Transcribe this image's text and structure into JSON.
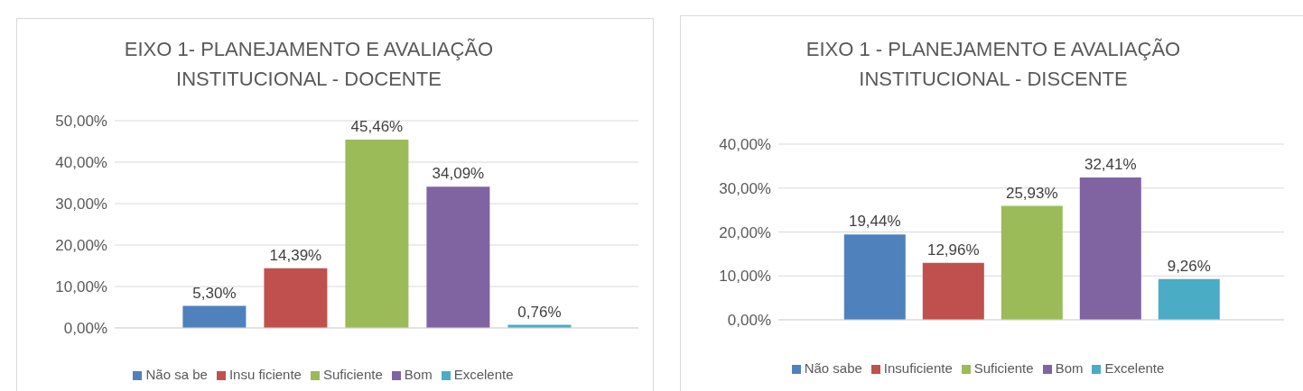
{
  "chart_data": [
    {
      "type": "bar",
      "title": "EIXO 1- PLANEJAMENTO E AVALIAÇÃO INSTITUCIONAL - DOCENTE",
      "categories": [
        null
      ],
      "series": [
        {
          "name": "Não sa be",
          "color": "#4f81bd",
          "values": [
            5.3
          ],
          "value_labels": [
            "5,30%"
          ]
        },
        {
          "name": "Insu ficiente",
          "color": "#c0504d",
          "values": [
            14.39
          ],
          "value_labels": [
            "14,39%"
          ]
        },
        {
          "name": "Suficiente",
          "color": "#9bbb59",
          "values": [
            45.46
          ],
          "value_labels": [
            "45,46%"
          ]
        },
        {
          "name": "Bom",
          "color": "#8064a2",
          "values": [
            34.09
          ],
          "value_labels": [
            "34,09%"
          ]
        },
        {
          "name": "Excelente",
          "color": "#4bacc6",
          "values": [
            0.76
          ],
          "value_labels": [
            "0,76%"
          ]
        }
      ],
      "ylim": [
        0,
        50
      ],
      "yticks": [
        {
          "value": 0,
          "label": "0,00%"
        },
        {
          "value": 10,
          "label": "10,00%"
        },
        {
          "value": 20,
          "label": "20,00%"
        },
        {
          "value": 30,
          "label": "30,00%"
        },
        {
          "value": 40,
          "label": "40,00%"
        },
        {
          "value": 50,
          "label": "50,00%"
        }
      ],
      "grid": "y",
      "legend": "bottom",
      "tick_labels": "y"
    },
    {
      "type": "bar",
      "title": "EIXO 1 - PLANEJAMENTO E AVALIAÇÃO INSTITUCIONAL - DISCENTE",
      "categories": [
        null
      ],
      "series": [
        {
          "name": "Não sabe",
          "color": "#4f81bd",
          "values": [
            19.44
          ],
          "value_labels": [
            "19,44%"
          ]
        },
        {
          "name": "Insuficiente",
          "color": "#c0504d",
          "values": [
            12.96
          ],
          "value_labels": [
            "12,96%"
          ]
        },
        {
          "name": "Suficiente",
          "color": "#9bbb59",
          "values": [
            25.93
          ],
          "value_labels": [
            "25,93%"
          ]
        },
        {
          "name": "Bom",
          "color": "#8064a2",
          "values": [
            32.41
          ],
          "value_labels": [
            "32,41%"
          ]
        },
        {
          "name": "Excelente",
          "color": "#4bacc6",
          "values": [
            9.26
          ],
          "value_labels": [
            "9,26%"
          ]
        }
      ],
      "ylim": [
        0,
        40
      ],
      "yticks": [
        {
          "value": 0,
          "label": "0,00%"
        },
        {
          "value": 10,
          "label": "10,00%"
        },
        {
          "value": 20,
          "label": "20,00%"
        },
        {
          "value": 30,
          "label": "30,00%"
        },
        {
          "value": 40,
          "label": "40,00%"
        }
      ],
      "grid": "y",
      "legend": "bottom",
      "tick_labels": "y"
    }
  ]
}
